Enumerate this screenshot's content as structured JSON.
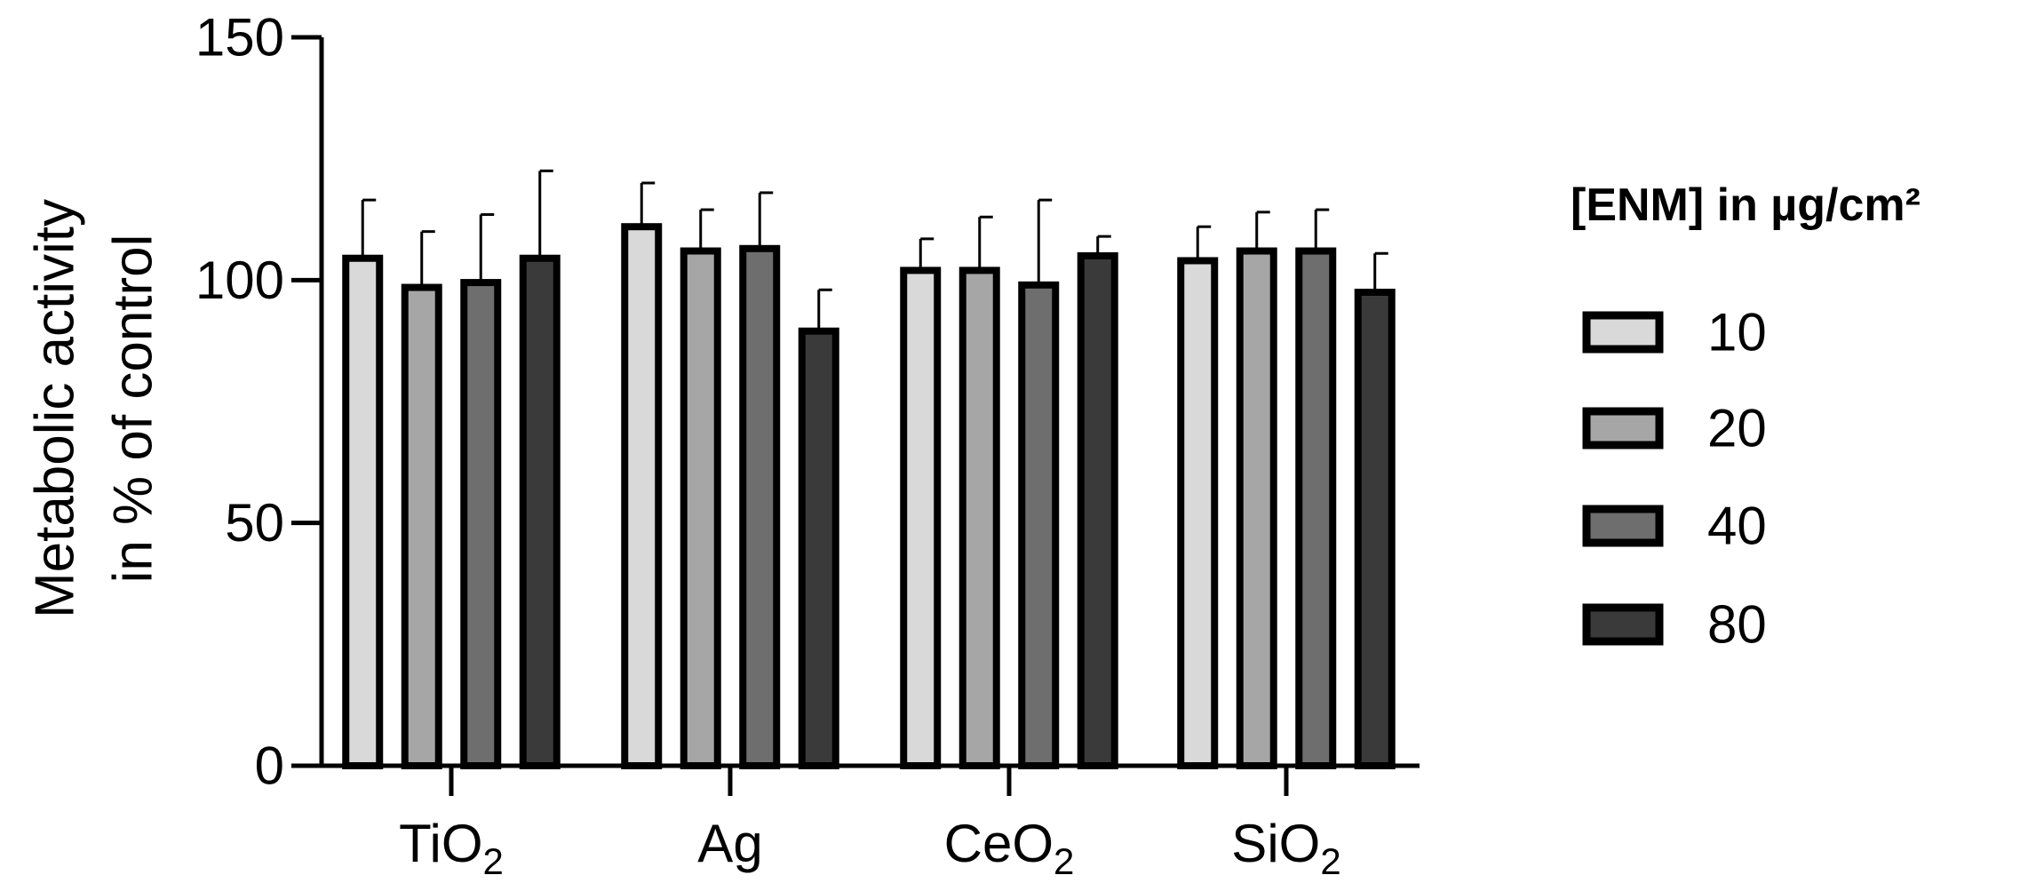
{
  "chart_data": {
    "type": "bar",
    "ylabel_lines": [
      "Metabolic activity",
      "in % of control"
    ],
    "ylim": [
      0,
      150
    ],
    "yticks": [
      0,
      50,
      100,
      150
    ],
    "categories": [
      {
        "base": "TiO",
        "sub": "2"
      },
      {
        "base": "Ag",
        "sub": ""
      },
      {
        "base": "CeO",
        "sub": "2"
      },
      {
        "base": "SiO",
        "sub": "2"
      }
    ],
    "legend_title": "[ENM] in µg/cm²",
    "legend_position": "right",
    "grid": false,
    "error_bars": "upper",
    "series": [
      {
        "name": "10",
        "color": "#d9d9d9",
        "values": [
          104.5,
          111,
          102,
          104
        ],
        "errors": [
          12,
          9,
          6.5,
          7
        ]
      },
      {
        "name": "20",
        "color": "#a6a6a6",
        "values": [
          98.5,
          106,
          102,
          106
        ],
        "errors": [
          11.5,
          8.5,
          11,
          8
        ]
      },
      {
        "name": "40",
        "color": "#6e6e6e",
        "values": [
          99.5,
          106.5,
          99,
          106
        ],
        "errors": [
          14,
          11.5,
          17.5,
          8.5
        ]
      },
      {
        "name": "80",
        "color": "#3a3a3a",
        "values": [
          104.5,
          89.5,
          105,
          97.5
        ],
        "errors": [
          18,
          8.5,
          4,
          8
        ]
      }
    ]
  }
}
